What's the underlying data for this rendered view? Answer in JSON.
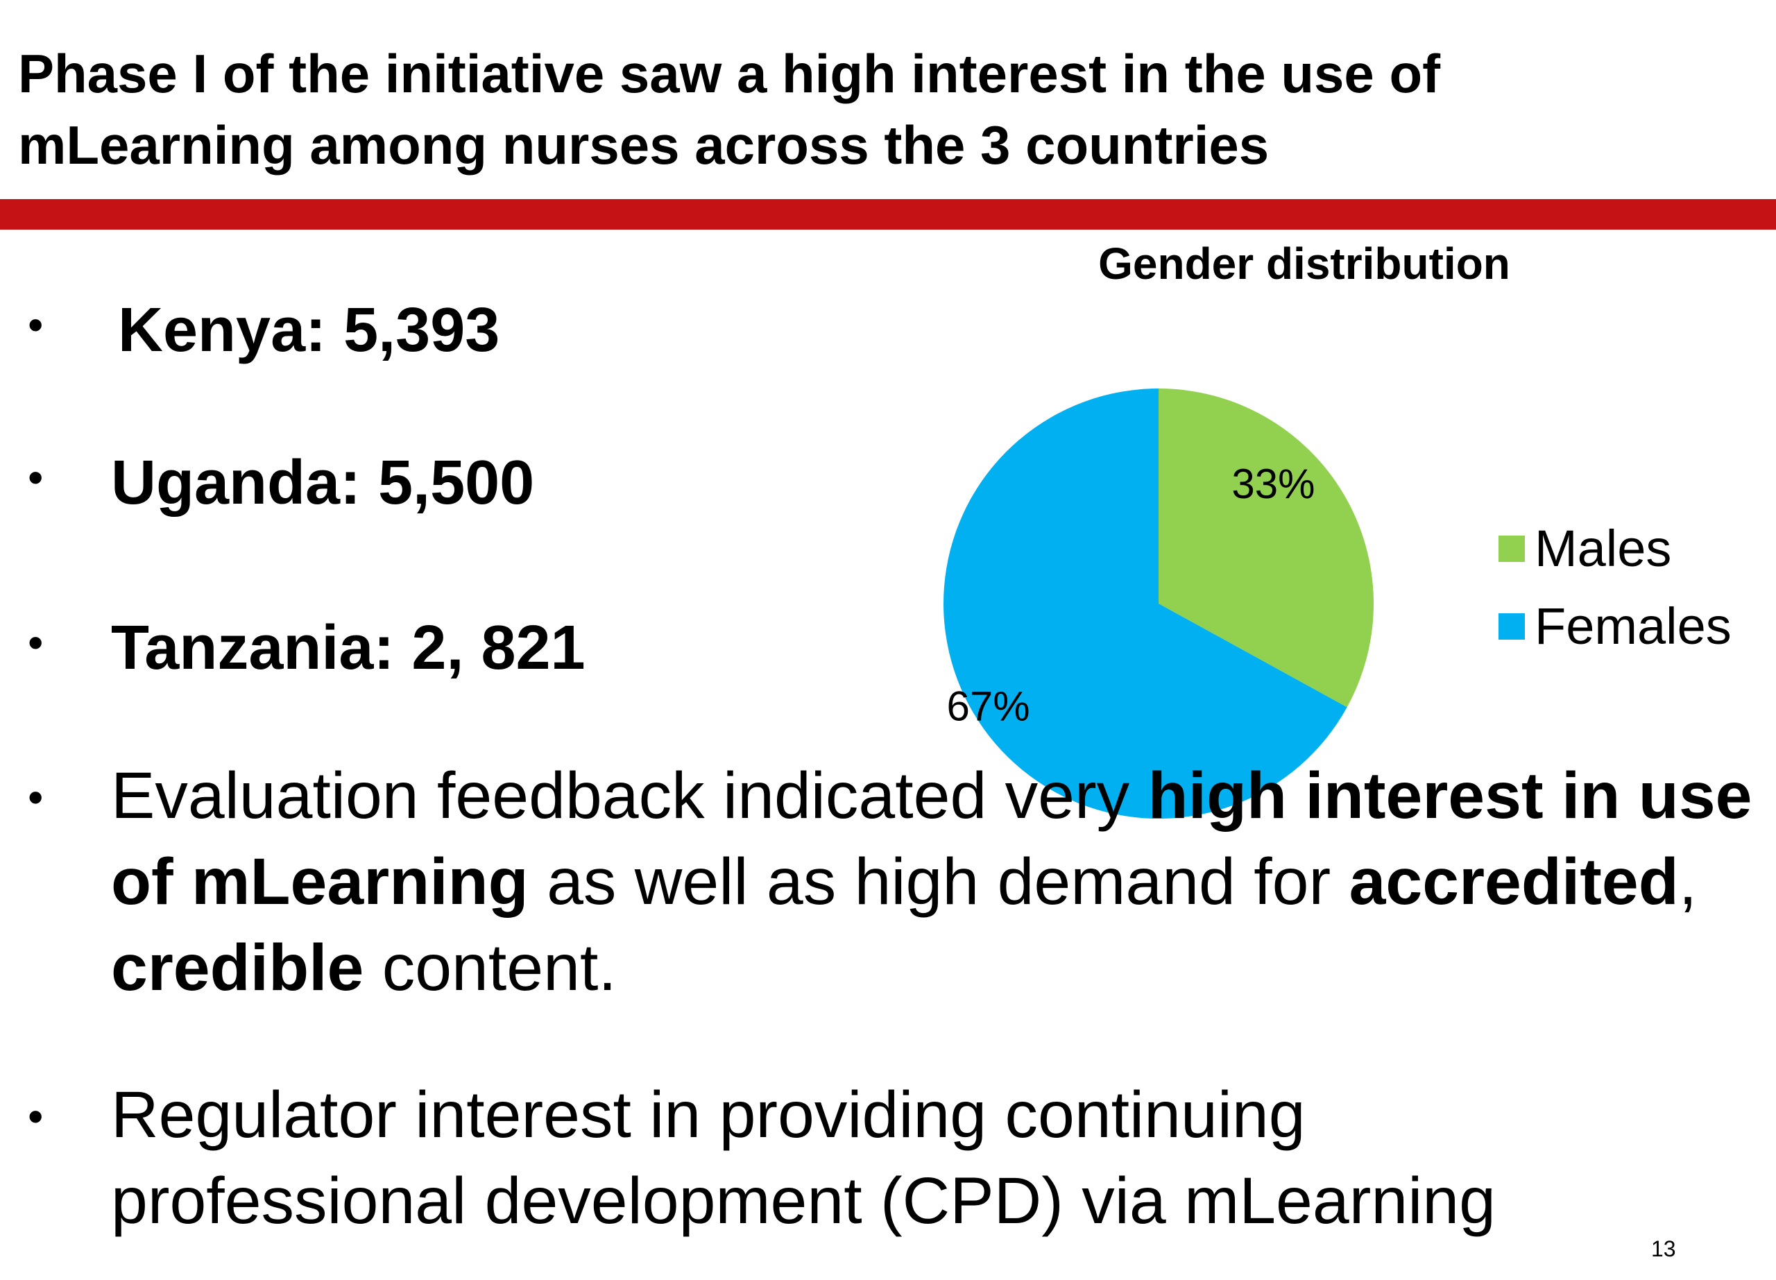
{
  "slide": {
    "title": "Phase I of the initiative saw a high interest in the use of mLearning among nurses across the 3 countries",
    "accent_color": "#c51214",
    "page_number": "13"
  },
  "bullets": {
    "marker": "•",
    "kenya": "Kenya: 5,393",
    "uganda": "Uganda: 5,500",
    "tanzania": "Tanzania: 2, 821",
    "feedback": {
      "t1": "Evaluation feedback indicated very ",
      "b1": "high interest in use of mLearning",
      "t2": " as well as high demand for ",
      "b2": "accredited",
      "t3": ", ",
      "b3": "credible",
      "t4": " content."
    },
    "regulator": "Regulator interest in providing continuing professional development (CPD) via mLearning"
  },
  "chart_data": {
    "type": "pie",
    "title": "Gender distribution",
    "slices": [
      {
        "label": "Males",
        "value": 33,
        "display": "33%",
        "color": "#92d050"
      },
      {
        "label": "Females",
        "value": 67,
        "display": "67%",
        "color": "#00b0f0"
      }
    ],
    "legend_position": "right"
  }
}
